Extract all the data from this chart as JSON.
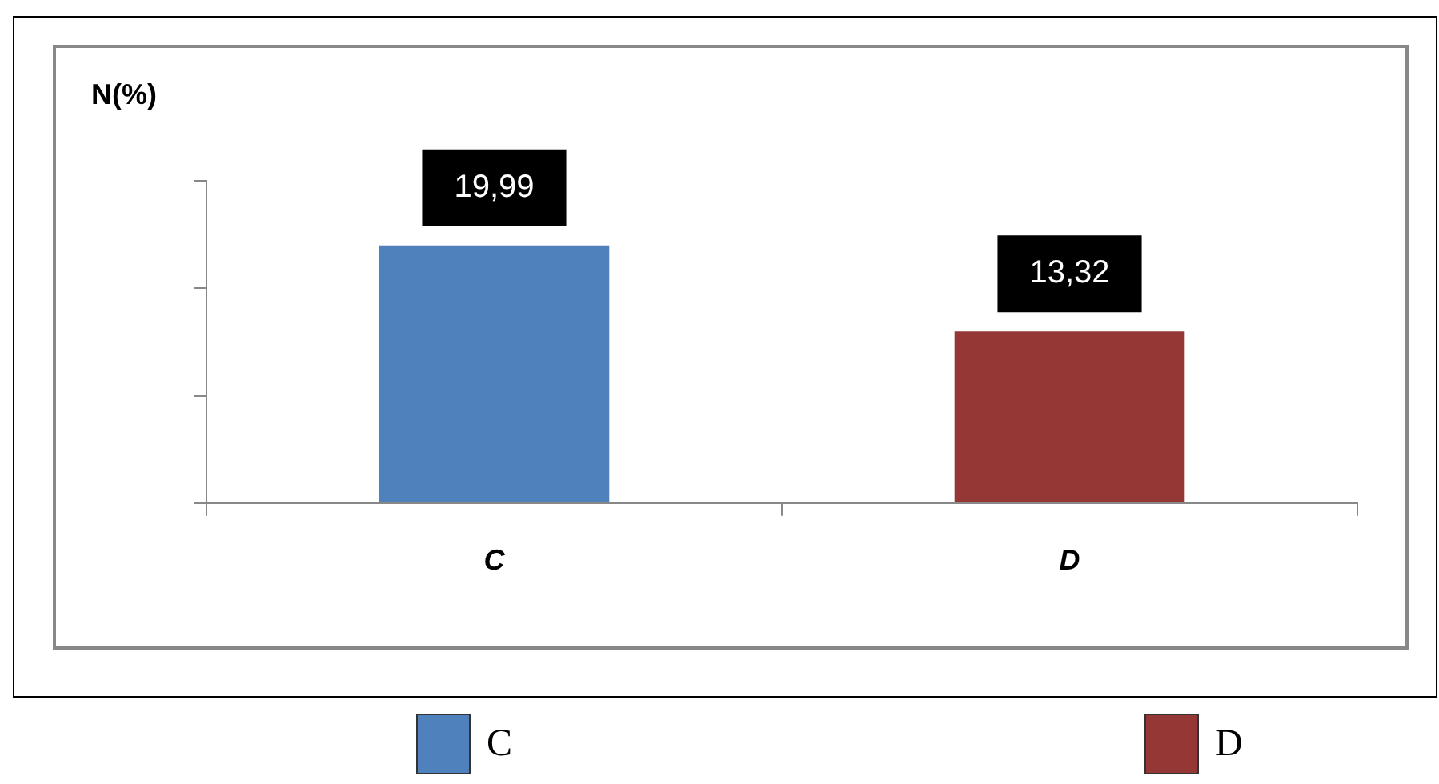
{
  "chart_data": {
    "type": "bar",
    "ylabel": "N(%)",
    "categories": [
      "C",
      "D"
    ],
    "series": [
      {
        "name": "C",
        "color": "#4f81bd",
        "values": [
          19.99,
          null
        ],
        "value_labels": [
          "19,99",
          null
        ]
      },
      {
        "name": "D",
        "color": "#953735",
        "values": [
          null,
          13.32
        ],
        "value_labels": [
          null,
          "13,32"
        ]
      }
    ],
    "tick_labels": "x",
    "legend": "bottom"
  }
}
